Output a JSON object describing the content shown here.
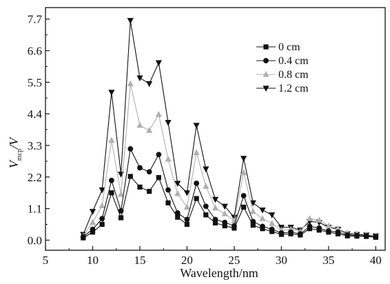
{
  "chart_data": {
    "type": "line",
    "xlabel": "Wavelength/nm",
    "ylabel": "V_mcp/V",
    "ylabel_main": "V",
    "ylabel_sub": "mcp",
    "ylabel_tail": "/V",
    "xlim": [
      5,
      41
    ],
    "ylim": [
      -0.35,
      8.1
    ],
    "x_ticks": [
      5,
      10,
      15,
      20,
      25,
      30,
      35,
      40
    ],
    "y_ticks": [
      0.0,
      1.1,
      2.2,
      3.3,
      4.4,
      5.5,
      6.6,
      7.7
    ],
    "y_tick_labels": [
      "0.0",
      "1.1",
      "2.2",
      "3.3",
      "4.4",
      "5.5",
      "6.6",
      "7.7"
    ],
    "grid": false,
    "legend_position": "top-right",
    "x": [
      9,
      10,
      11,
      12,
      13,
      14,
      15,
      16,
      17,
      18,
      19,
      20,
      21,
      22,
      23,
      24,
      25,
      26,
      27,
      28,
      29,
      30,
      31,
      32,
      33,
      34,
      35,
      36,
      37,
      38,
      39,
      40
    ],
    "series": [
      {
        "name": "0 cm",
        "marker": "square",
        "color": "#111111",
        "values": [
          0.08,
          0.28,
          0.55,
          1.65,
          0.78,
          2.22,
          1.85,
          1.7,
          2.18,
          1.3,
          0.8,
          0.55,
          1.45,
          0.88,
          0.6,
          0.5,
          0.42,
          1.15,
          0.52,
          0.4,
          0.3,
          0.2,
          0.22,
          0.18,
          0.4,
          0.35,
          0.28,
          0.22,
          0.15,
          0.14,
          0.13,
          0.1
        ]
      },
      {
        "name": "0.4 cm",
        "marker": "circle",
        "color": "#111111",
        "values": [
          0.12,
          0.38,
          0.75,
          2.08,
          1.02,
          3.18,
          2.52,
          2.38,
          2.98,
          1.75,
          0.95,
          0.72,
          1.98,
          1.18,
          0.72,
          0.62,
          0.5,
          1.55,
          0.65,
          0.48,
          0.38,
          0.25,
          0.28,
          0.22,
          0.48,
          0.42,
          0.32,
          0.28,
          0.18,
          0.16,
          0.15,
          0.12
        ]
      },
      {
        "name": "0.8 cm",
        "marker": "triangle-up",
        "color": "#b0b0b0",
        "values": [
          0.15,
          0.62,
          1.2,
          3.48,
          1.6,
          5.45,
          4.0,
          3.82,
          4.38,
          2.82,
          1.62,
          1.15,
          3.05,
          1.88,
          1.12,
          0.92,
          0.68,
          2.35,
          1.0,
          0.75,
          0.58,
          0.35,
          0.38,
          0.3,
          0.75,
          0.7,
          0.5,
          0.4,
          0.25,
          0.22,
          0.2,
          0.15
        ]
      },
      {
        "name": "1.2 cm",
        "marker": "triangle-down",
        "color": "#111111",
        "values": [
          0.2,
          1.0,
          1.75,
          5.15,
          2.3,
          7.65,
          5.65,
          5.45,
          6.18,
          4.1,
          1.98,
          1.65,
          4.0,
          2.48,
          1.42,
          1.18,
          0.8,
          2.85,
          1.3,
          1.05,
          0.88,
          0.45,
          0.45,
          0.35,
          0.65,
          0.62,
          0.45,
          0.38,
          0.22,
          0.2,
          0.18,
          0.15
        ]
      }
    ]
  }
}
